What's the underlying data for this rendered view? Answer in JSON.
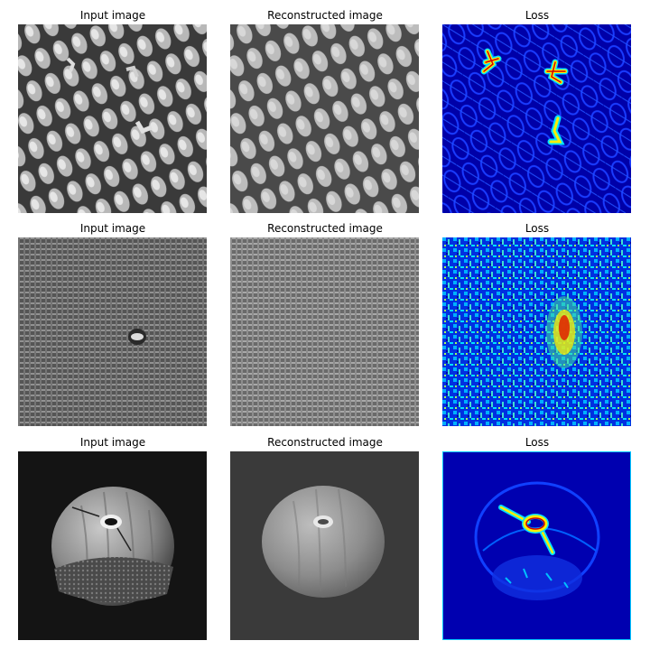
{
  "figure": {
    "rows": [
      {
        "id": "grid",
        "panels": [
          {
            "kind": "input",
            "title": "Input image"
          },
          {
            "kind": "recon",
            "title": "Reconstructed image"
          },
          {
            "kind": "loss",
            "title": "Loss"
          }
        ]
      },
      {
        "id": "carpet",
        "panels": [
          {
            "kind": "input",
            "title": "Input image"
          },
          {
            "kind": "recon",
            "title": "Reconstructed image"
          },
          {
            "kind": "loss",
            "title": "Loss"
          }
        ]
      },
      {
        "id": "hazelnut",
        "panels": [
          {
            "kind": "input",
            "title": "Input image"
          },
          {
            "kind": "recon",
            "title": "Reconstructed image"
          },
          {
            "kind": "loss",
            "title": "Loss"
          }
        ]
      }
    ],
    "colors": {
      "loss_low": "#0000b4",
      "loss_mid": "#00c8ff",
      "loss_high": "#ffee00",
      "loss_peak": "#d00000"
    }
  }
}
